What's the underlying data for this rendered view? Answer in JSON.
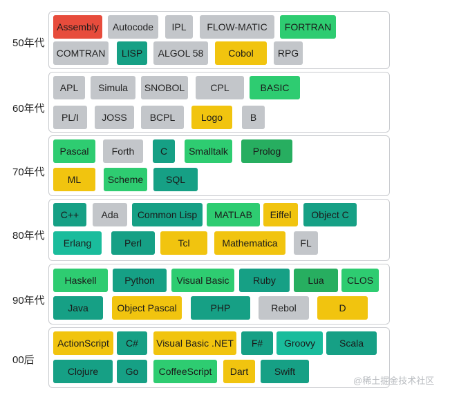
{
  "colors": {
    "red": "#e74c3c",
    "gray": "#c3c6ca",
    "green": "#2ecc71",
    "dark_green": "#27ae60",
    "teal": "#16a085",
    "teal_light": "#1abc9c",
    "yellow": "#f1c40f",
    "border": "#c9cbcf"
  },
  "eras": [
    {
      "label": "50年代",
      "rows": [
        [
          {
            "name": "Assembly",
            "color": "red"
          },
          {
            "name": "Autocode",
            "color": "gray"
          },
          {
            "name": "IPL",
            "color": "gray"
          },
          {
            "name": "FLOW-MATIC",
            "color": "gray"
          },
          {
            "name": "FORTRAN",
            "color": "green"
          }
        ],
        [
          {
            "name": "COMTRAN",
            "color": "gray"
          },
          {
            "name": "LISP",
            "color": "teal"
          },
          {
            "name": "ALGOL 58",
            "color": "gray"
          },
          {
            "name": "Cobol",
            "color": "yellow"
          },
          {
            "name": "RPG",
            "color": "gray"
          }
        ]
      ]
    },
    {
      "label": "60年代",
      "rows": [
        [
          {
            "name": "APL",
            "color": "gray"
          },
          {
            "name": "Simula",
            "color": "gray"
          },
          {
            "name": "SNOBOL",
            "color": "gray"
          },
          {
            "name": "CPL",
            "color": "gray"
          },
          {
            "name": "BASIC",
            "color": "green"
          }
        ],
        [
          {
            "name": "PL/I",
            "color": "gray"
          },
          {
            "name": "JOSS",
            "color": "gray"
          },
          {
            "name": "BCPL",
            "color": "gray"
          },
          {
            "name": "Logo",
            "color": "yellow"
          },
          {
            "name": "B",
            "color": "gray"
          }
        ]
      ]
    },
    {
      "label": "70年代",
      "rows": [
        [
          {
            "name": "Pascal",
            "color": "green"
          },
          {
            "name": "Forth",
            "color": "gray"
          },
          {
            "name": "C",
            "color": "teal"
          },
          {
            "name": "Smalltalk",
            "color": "green"
          },
          {
            "name": "Prolog",
            "color": "dark_green"
          }
        ],
        [
          {
            "name": "ML",
            "color": "yellow"
          },
          {
            "name": "Scheme",
            "color": "green"
          },
          {
            "name": "SQL",
            "color": "teal"
          }
        ]
      ]
    },
    {
      "label": "80年代",
      "rows": [
        [
          {
            "name": "C++",
            "color": "teal"
          },
          {
            "name": "Ada",
            "color": "gray"
          },
          {
            "name": "Common Lisp",
            "color": "teal"
          },
          {
            "name": "MATLAB",
            "color": "green"
          },
          {
            "name": "Eiffel",
            "color": "yellow"
          },
          {
            "name": "Object C",
            "color": "teal"
          }
        ],
        [
          {
            "name": "Erlang",
            "color": "teal_light"
          },
          {
            "name": "Perl",
            "color": "teal"
          },
          {
            "name": "Tcl",
            "color": "yellow"
          },
          {
            "name": "Mathematica",
            "color": "yellow"
          },
          {
            "name": "FL",
            "color": "gray"
          }
        ]
      ]
    },
    {
      "label": "90年代",
      "rows": [
        [
          {
            "name": "Haskell",
            "color": "green"
          },
          {
            "name": "Python",
            "color": "teal"
          },
          {
            "name": "Visual Basic",
            "color": "green"
          },
          {
            "name": "Ruby",
            "color": "teal"
          },
          {
            "name": "Lua",
            "color": "dark_green"
          },
          {
            "name": "CLOS",
            "color": "green"
          }
        ],
        [
          {
            "name": "Java",
            "color": "teal"
          },
          {
            "name": "Object Pascal",
            "color": "yellow"
          },
          {
            "name": "PHP",
            "color": "teal"
          },
          {
            "name": "Rebol",
            "color": "gray"
          },
          {
            "name": "D",
            "color": "yellow"
          }
        ]
      ]
    },
    {
      "label": "00后",
      "rows": [
        [
          {
            "name": "ActionScript",
            "color": "yellow"
          },
          {
            "name": "C#",
            "color": "teal"
          },
          {
            "name": "Visual Basic .NET",
            "color": "yellow"
          },
          {
            "name": "F#",
            "color": "teal"
          },
          {
            "name": "Groovy",
            "color": "teal_light"
          },
          {
            "name": "Scala",
            "color": "teal"
          }
        ],
        [
          {
            "name": "Clojure",
            "color": "teal"
          },
          {
            "name": "Go",
            "color": "teal"
          },
          {
            "name": "CoffeeScript",
            "color": "green"
          },
          {
            "name": "Dart",
            "color": "yellow"
          },
          {
            "name": "Swift",
            "color": "teal"
          }
        ]
      ]
    }
  ],
  "watermark": "@稀土掘金技术社区"
}
